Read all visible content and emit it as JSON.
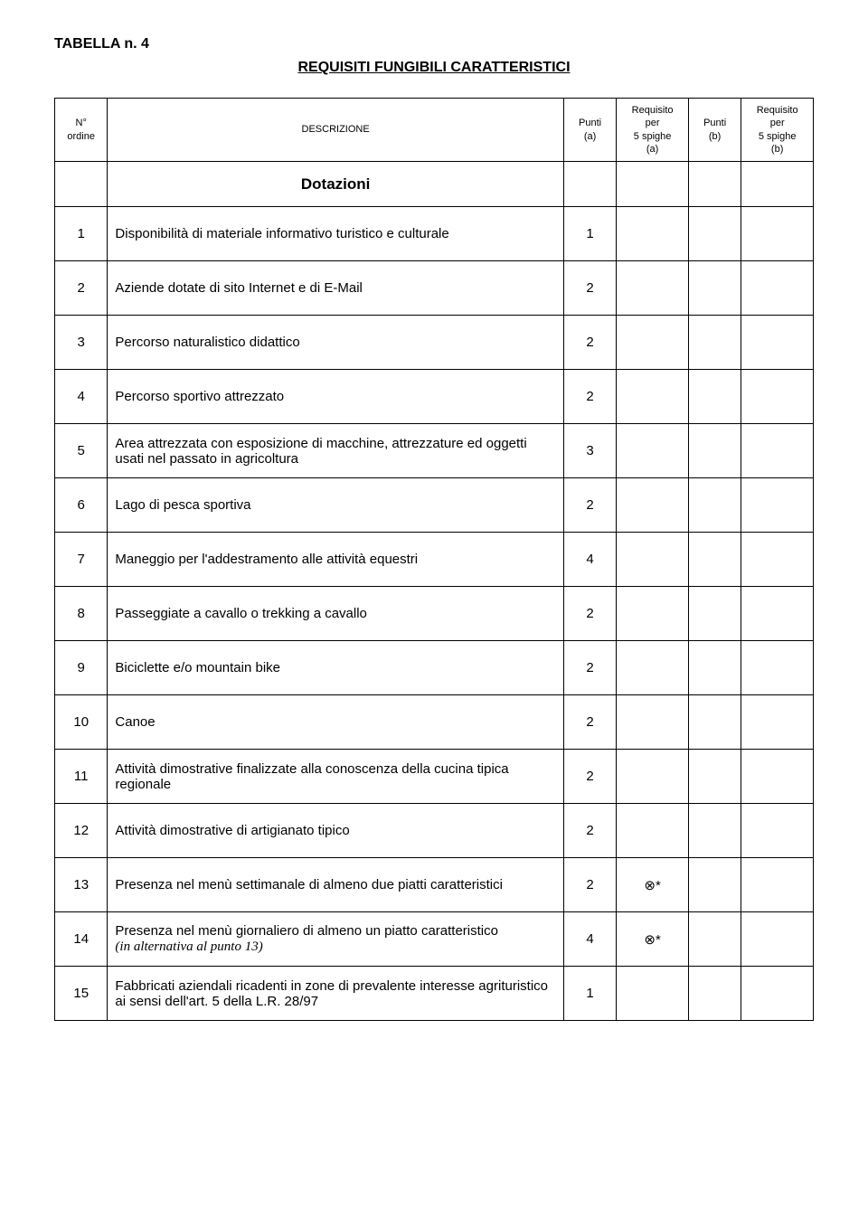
{
  "table_label": "TABELLA n. 4",
  "title": "REQUISITI FUNGIBILI CARATTERISTICI",
  "headers": {
    "n_ordine": "N°\nordine",
    "descrizione": "DESCRIZIONE",
    "punti_a": "Punti\n(a)",
    "req_a": "Requisito\nper\n5 spighe\n(a)",
    "punti_b": "Punti\n(b)",
    "req_b": "Requisito\nper\n5 spighe\n(b)"
  },
  "section_heading": "Dotazioni",
  "rows": [
    {
      "n": "1",
      "desc": "Disponibilità di materiale informativo turistico e culturale",
      "a": "1",
      "ra": "",
      "b": "",
      "rb": ""
    },
    {
      "n": "2",
      "desc": "Aziende dotate di sito Internet e di E-Mail",
      "a": "2",
      "ra": "",
      "b": "",
      "rb": ""
    },
    {
      "n": "3",
      "desc": "Percorso naturalistico didattico",
      "a": "2",
      "ra": "",
      "b": "",
      "rb": ""
    },
    {
      "n": "4",
      "desc": "Percorso sportivo attrezzato",
      "a": "2",
      "ra": "",
      "b": "",
      "rb": ""
    },
    {
      "n": "5",
      "desc": "Area attrezzata con esposizione di macchine, attrezzature ed oggetti usati nel passato in agricoltura",
      "a": "3",
      "ra": "",
      "b": "",
      "rb": ""
    },
    {
      "n": "6",
      "desc": "Lago di pesca sportiva",
      "a": "2",
      "ra": "",
      "b": "",
      "rb": ""
    },
    {
      "n": "7",
      "desc": "Maneggio per l'addestramento alle attività equestri",
      "a": "4",
      "ra": "",
      "b": "",
      "rb": ""
    },
    {
      "n": "8",
      "desc": "Passeggiate a cavallo o trekking a cavallo",
      "a": "2",
      "ra": "",
      "b": "",
      "rb": ""
    },
    {
      "n": "9",
      "desc": "Biciclette e/o mountain bike",
      "a": "2",
      "ra": "",
      "b": "",
      "rb": ""
    },
    {
      "n": "10",
      "desc": "Canoe",
      "a": "2",
      "ra": "",
      "b": "",
      "rb": ""
    },
    {
      "n": "11",
      "desc": "Attività dimostrative finalizzate alla conoscenza della cucina tipica regionale",
      "a": "2",
      "ra": "",
      "b": "",
      "rb": ""
    },
    {
      "n": "12",
      "desc": "Attività dimostrative di artigianato tipico",
      "a": "2",
      "ra": "",
      "b": "",
      "rb": ""
    },
    {
      "n": "13",
      "desc": "Presenza nel menù settimanale di almeno due piatti caratteristici",
      "a": "2",
      "ra": "⊗*",
      "b": "",
      "rb": ""
    },
    {
      "n": "14",
      "desc_html": "Presenza nel menù giornaliero di almeno un piatto caratteristico<br><span class=\"italic\">(in alternativa al punto 13)</span>",
      "a": "4",
      "ra": "⊗*",
      "b": "",
      "rb": ""
    },
    {
      "n": "15",
      "desc": "Fabbricati aziendali ricadenti in zone di prevalente interesse agrituristico ai sensi dell'art. 5 della L.R. 28/97",
      "a": "1",
      "ra": "",
      "b": "",
      "rb": ""
    }
  ]
}
